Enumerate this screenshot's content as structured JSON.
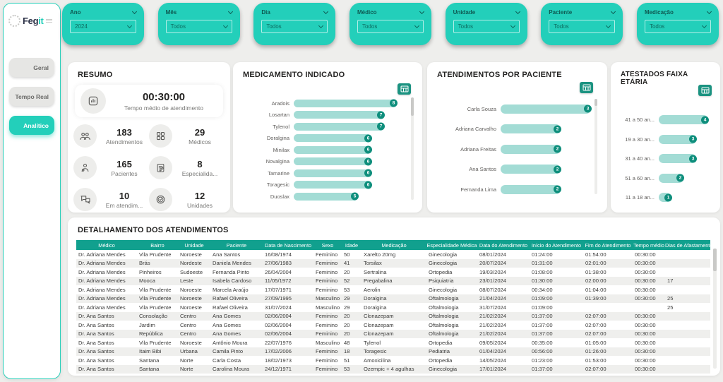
{
  "colors": {
    "accent": "#23cfba",
    "accent_dark": "#0e8e7c",
    "bar_fill": "#a3dcd5",
    "table_header": "#11a08e",
    "background": "#eeeeec"
  },
  "sidebar": {
    "brand_prefix": "Feg",
    "brand_suffix": "it",
    "items": [
      {
        "label": "Geral",
        "active": false
      },
      {
        "label": "Tempo Real",
        "active": false
      },
      {
        "label": "Analítico",
        "active": true
      }
    ]
  },
  "filters": [
    {
      "label": "Ano",
      "value": "2024"
    },
    {
      "label": "Mês",
      "value": "Todos"
    },
    {
      "label": "Dia",
      "value": "Todos"
    },
    {
      "label": "Médico",
      "value": "Todos"
    },
    {
      "label": "Unidade",
      "value": "Todos"
    },
    {
      "label": "Paciente",
      "value": "Todos"
    },
    {
      "label": "Medicação",
      "value": "Todos"
    }
  ],
  "resumo": {
    "title": "RESUMO",
    "time_kpi": {
      "value": "00:30:00",
      "label": "Tempo médio de atendimento",
      "icon": "stats-icon"
    },
    "kpis": [
      {
        "value": "183",
        "label": "Atendimentos",
        "icon": "people-icon"
      },
      {
        "value": "29",
        "label": "Médicos",
        "icon": "grid-icon"
      },
      {
        "value": "165",
        "label": "Pacientes",
        "icon": "patient-icon"
      },
      {
        "value": "8",
        "label": "Especialida...",
        "icon": "clipboard-icon"
      },
      {
        "value": "10",
        "label": "Em atendim...",
        "icon": "chat-icon"
      },
      {
        "value": "12",
        "label": "Unidades",
        "icon": "medal-icon"
      }
    ]
  },
  "chart_data": [
    {
      "type": "bar",
      "orientation": "horizontal",
      "title": "MEDICAMENTO INDICADO",
      "categories": [
        "Aradois",
        "Losartan",
        "Tylenol",
        "Doralgina",
        "Minilax",
        "Novalgina",
        "Tamarine",
        "Toragesic",
        "Duoslax"
      ],
      "values": [
        8,
        7,
        7,
        6,
        6,
        6,
        6,
        6,
        5
      ],
      "xlim": [
        0,
        8
      ],
      "legend": "none",
      "grid": false
    },
    {
      "type": "bar",
      "orientation": "horizontal",
      "title": "ATENDIMENTOS POR PACIENTE",
      "categories": [
        "Carla Souza",
        "Adriana Carvalho",
        "Adriana Freitas",
        "Ana Santos",
        "Fernanda Lima"
      ],
      "values": [
        3,
        2,
        2,
        2,
        2
      ],
      "xlim": [
        0,
        3
      ],
      "legend": "none",
      "grid": false
    },
    {
      "type": "bar",
      "orientation": "horizontal",
      "title": "ATESTADOS FAIXA ETÁRIA",
      "categories": [
        "41 a 50 an...",
        "19 a 30 an...",
        "31 a 40 an...",
        "51 a 60 an...",
        "11 a 18 an..."
      ],
      "values": [
        4,
        3,
        3,
        2,
        1
      ],
      "xlim": [
        0,
        4
      ],
      "legend": "none",
      "grid": false
    }
  ],
  "table": {
    "title": "DETALHAMENTO DOS ATENDIMENTOS",
    "columns": [
      "Médico",
      "Bairro",
      "Unidade",
      "Paciente",
      "Data de Nascimento",
      "Sexo",
      "Idade",
      "Medicação",
      "Especialidade Médica",
      "Data do Atendimento",
      "Início do Atendimento",
      "Fim do Atendimento",
      "Tempo médio",
      "Dias de Afastamento"
    ],
    "rows": [
      [
        "Dr. Adriana Mendes",
        "Vila Prudente",
        "Noroeste",
        "Ana Santos",
        "16/08/1974",
        "Feminino",
        "50",
        "Xarelto 20mg",
        "Ginecologia",
        "08/01/2024",
        "01:24:00",
        "01:54:00",
        "00:30:00",
        ""
      ],
      [
        "Dr. Adriana Mendes",
        "Brás",
        "Nordeste",
        "Daniela Mendes",
        "27/06/1983",
        "Feminino",
        "41",
        "Torsilax",
        "Ginecologia",
        "20/07/2024",
        "01:31:00",
        "02:01:00",
        "00:30:00",
        ""
      ],
      [
        "Dr. Adriana Mendes",
        "Pinheiros",
        "Sudoeste",
        "Fernanda Pinto",
        "26/04/2004",
        "Feminino",
        "20",
        "Sertralina",
        "Ortopedia",
        "19/03/2024",
        "01:08:00",
        "01:38:00",
        "00:30:00",
        ""
      ],
      [
        "Dr. Adriana Mendes",
        "Mooca",
        "Leste",
        "Isabela Cardoso",
        "11/05/1972",
        "Feminino",
        "52",
        "Pregabalina",
        "Psiquiatria",
        "23/01/2024",
        "01:30:00",
        "02:00:00",
        "00:30:00",
        "17"
      ],
      [
        "Dr. Adriana Mendes",
        "Vila Prudente",
        "Noroeste",
        "Marcela Araújo",
        "17/07/1971",
        "Feminino",
        "53",
        "Aerolin",
        "Ginecologia",
        "08/07/2024",
        "00:34:00",
        "01:04:00",
        "00:30:00",
        ""
      ],
      [
        "Dr. Adriana Mendes",
        "Vila Prudente",
        "Noroeste",
        "Rafael Oliveira",
        "27/09/1995",
        "Masculino",
        "29",
        "Doralgina",
        "Oftalmologia",
        "21/04/2024",
        "01:09:00",
        "01:39:00",
        "00:30:00",
        "25"
      ],
      [
        "Dr. Adriana Mendes",
        "Vila Prudente",
        "Noroeste",
        "Rafael Oliveira",
        "31/07/2024",
        "Masculino",
        "29",
        "Doralgina",
        "Oftalmologia",
        "31/07/2024",
        "01:09:00",
        "",
        "",
        "25"
      ],
      [
        "Dr. Ana Santos",
        "Consolação",
        "Centro",
        "Ana Gomes",
        "02/06/2004",
        "Feminino",
        "20",
        "Clonazepam",
        "Oftalmologia",
        "21/02/2024",
        "01:37:00",
        "02:07:00",
        "00:30:00",
        ""
      ],
      [
        "Dr. Ana Santos",
        "Jardim",
        "Centro",
        "Ana Gomes",
        "02/06/2004",
        "Feminino",
        "20",
        "Clonazepam",
        "Oftalmologia",
        "21/02/2024",
        "01:37:00",
        "02:07:00",
        "00:30:00",
        ""
      ],
      [
        "Dr. Ana Santos",
        "República",
        "Centro",
        "Ana Gomes",
        "02/06/2004",
        "Feminino",
        "20",
        "Clonazepam",
        "Oftalmologia",
        "21/02/2024",
        "01:37:00",
        "02:07:00",
        "00:30:00",
        ""
      ],
      [
        "Dr. Ana Santos",
        "Vila Prudente",
        "Noroeste",
        "Antônio Moura",
        "22/07/1976",
        "Masculino",
        "48",
        "Tylenol",
        "Ortopedia",
        "09/05/2024",
        "00:35:00",
        "01:05:00",
        "00:30:00",
        ""
      ],
      [
        "Dr. Ana Santos",
        "Itaim Bibi",
        "Urbana",
        "Camila Pinto",
        "17/02/2006",
        "Feminino",
        "18",
        "Toragesic",
        "Pediatria",
        "01/04/2024",
        "00:56:00",
        "01:26:00",
        "00:30:00",
        ""
      ],
      [
        "Dr. Ana Santos",
        "Santana",
        "Norte",
        "Carla Costa",
        "18/02/1973",
        "Feminino",
        "51",
        "Amoxicilina",
        "Ortopedia",
        "14/05/2024",
        "01:23:00",
        "01:53:00",
        "00:30:00",
        ""
      ],
      [
        "Dr. Ana Santos",
        "Santana",
        "Norte",
        "Carolina Moura",
        "24/12/1971",
        "Feminino",
        "53",
        "Ozempic + 4 agulhas",
        "Ginecologia",
        "17/01/2024",
        "01:37:00",
        "02:07:00",
        "00:30:00",
        ""
      ]
    ]
  }
}
